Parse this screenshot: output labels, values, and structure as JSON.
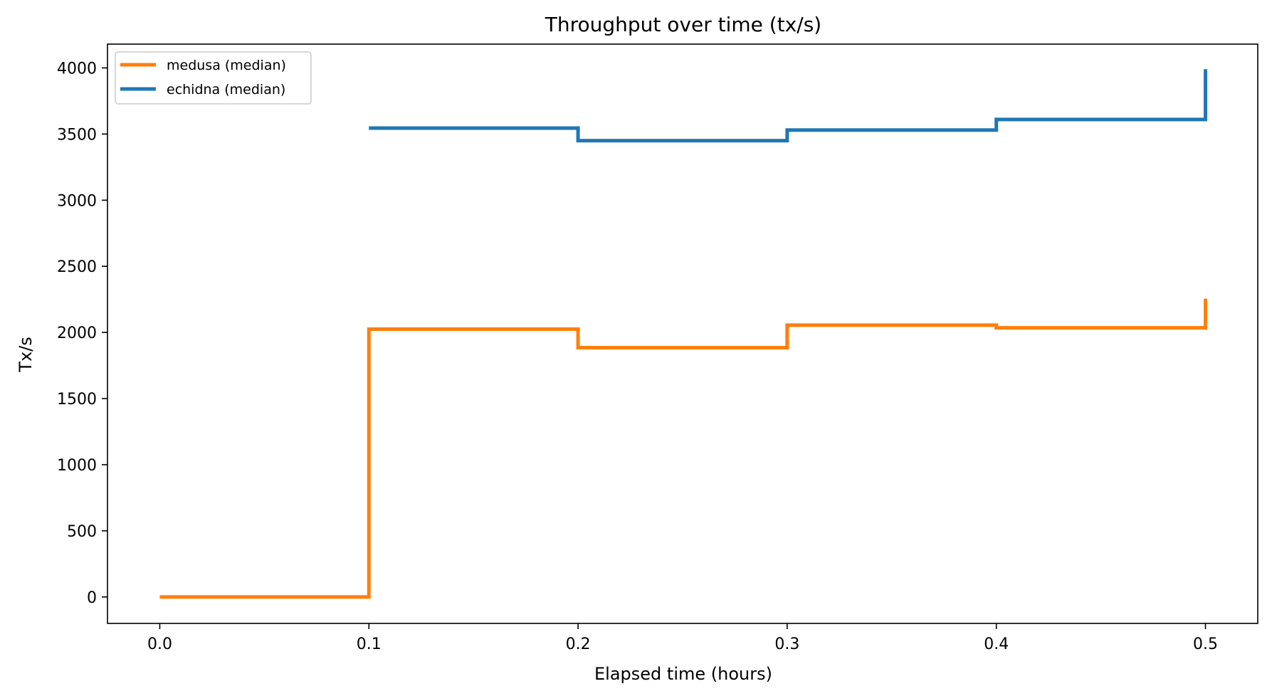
{
  "chart_data": {
    "type": "line",
    "step": "post",
    "title": "Throughput over time (tx/s)",
    "xlabel": "Elapsed time (hours)",
    "ylabel": "Tx/s",
    "xlim": [
      -0.025,
      0.525
    ],
    "ylim": [
      -200,
      4180
    ],
    "xticks": [
      0.0,
      0.1,
      0.2,
      0.3,
      0.4,
      0.5
    ],
    "xtick_labels": [
      "0.0",
      "0.1",
      "0.2",
      "0.3",
      "0.4",
      "0.5"
    ],
    "yticks": [
      0,
      500,
      1000,
      1500,
      2000,
      2500,
      3000,
      3500,
      4000
    ],
    "ytick_labels": [
      "0",
      "500",
      "1000",
      "1500",
      "2000",
      "2500",
      "3000",
      "3500",
      "4000"
    ],
    "legend_position": "top-left",
    "grid": false,
    "series": [
      {
        "name": "medusa (median)",
        "color": "#ff7f0e",
        "x": [
          0.0,
          0.1,
          0.2,
          0.3,
          0.4,
          0.5
        ],
        "y": [
          0,
          2025,
          1885,
          2055,
          2035,
          2255
        ]
      },
      {
        "name": "echidna (median)",
        "color": "#1f77b4",
        "x": [
          0.1,
          0.2,
          0.3,
          0.4,
          0.5
        ],
        "y": [
          3545,
          3450,
          3530,
          3610,
          3990
        ]
      }
    ]
  }
}
